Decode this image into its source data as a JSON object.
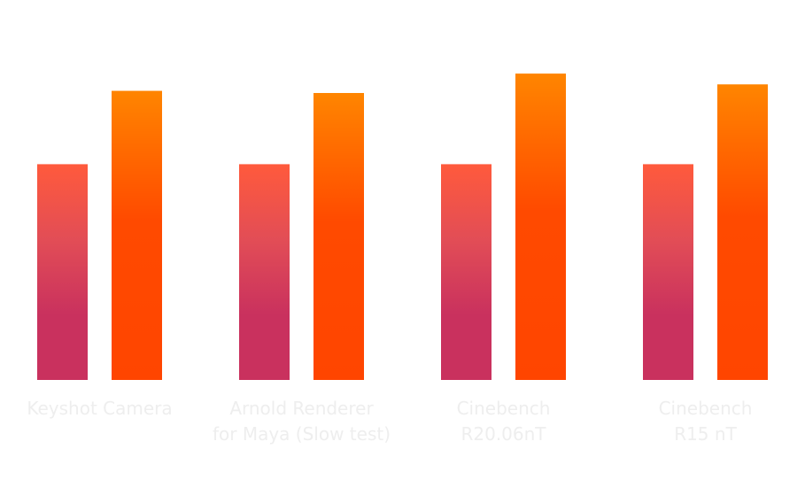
{
  "chart_data": {
    "type": "bar",
    "categories": [
      [
        "Keyshot Camera"
      ],
      [
        "Arnold Renderer",
        "for Maya (Slow test)"
      ],
      [
        "Cinebench",
        "R20.06nT"
      ],
      [
        "Cinebench",
        "R15 nT"
      ]
    ],
    "series": [
      {
        "values": [
          100,
          100,
          100,
          100
        ]
      },
      {
        "values": [
          134,
          133,
          142,
          137
        ]
      }
    ],
    "ylim": [
      0,
      172
    ],
    "grid": false,
    "legend": "none",
    "colors": {
      "series_1_top": "#FF5A3C",
      "series_1_mid": "#E24D56",
      "series_1_bottom": "#C9315E",
      "series_2_top": "#FF8500",
      "series_2_mid": "#FF4A00",
      "series_2_bottom": "#FF4500",
      "label": "#EEEEEE"
    }
  }
}
